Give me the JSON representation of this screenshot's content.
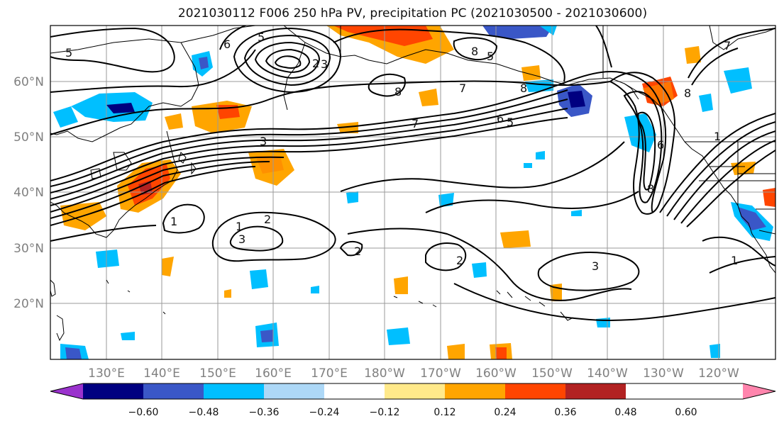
{
  "title": "2021030112 F006 250 hPa PV, precipitation PC (2021030500 - 2021030600)",
  "map": {
    "lat_labels": [
      "60°N",
      "50°N",
      "40°N",
      "30°N",
      "20°N"
    ],
    "lon_labels": [
      "130°E",
      "140°E",
      "150°E",
      "160°E",
      "170°E",
      "180°W",
      "170°W",
      "160°W",
      "150°W",
      "140°W",
      "130°W",
      "120°W"
    ],
    "contour_labels": [
      "5",
      "6",
      "5",
      "2",
      "3",
      "7",
      "8",
      "8",
      "5",
      "8",
      "7",
      "6",
      "5",
      "3",
      "1",
      "1",
      "2",
      "3",
      "2",
      "2",
      "3",
      "8",
      "8",
      "6",
      "1",
      "1",
      "7"
    ]
  },
  "colorbar": {
    "colors": [
      "#9a32cd",
      "#000080",
      "#3a57c7",
      "#00bfff",
      "#add8f7",
      "#ffffff",
      "#ffe98a",
      "#ffa500",
      "#ff4500",
      "#b22222",
      "#ff85ad"
    ],
    "tick_labels": [
      "−0.60",
      "−0.48",
      "−0.36",
      "−0.24",
      "−0.12",
      "0.12",
      "0.24",
      "0.36",
      "0.48",
      "0.60"
    ]
  }
}
